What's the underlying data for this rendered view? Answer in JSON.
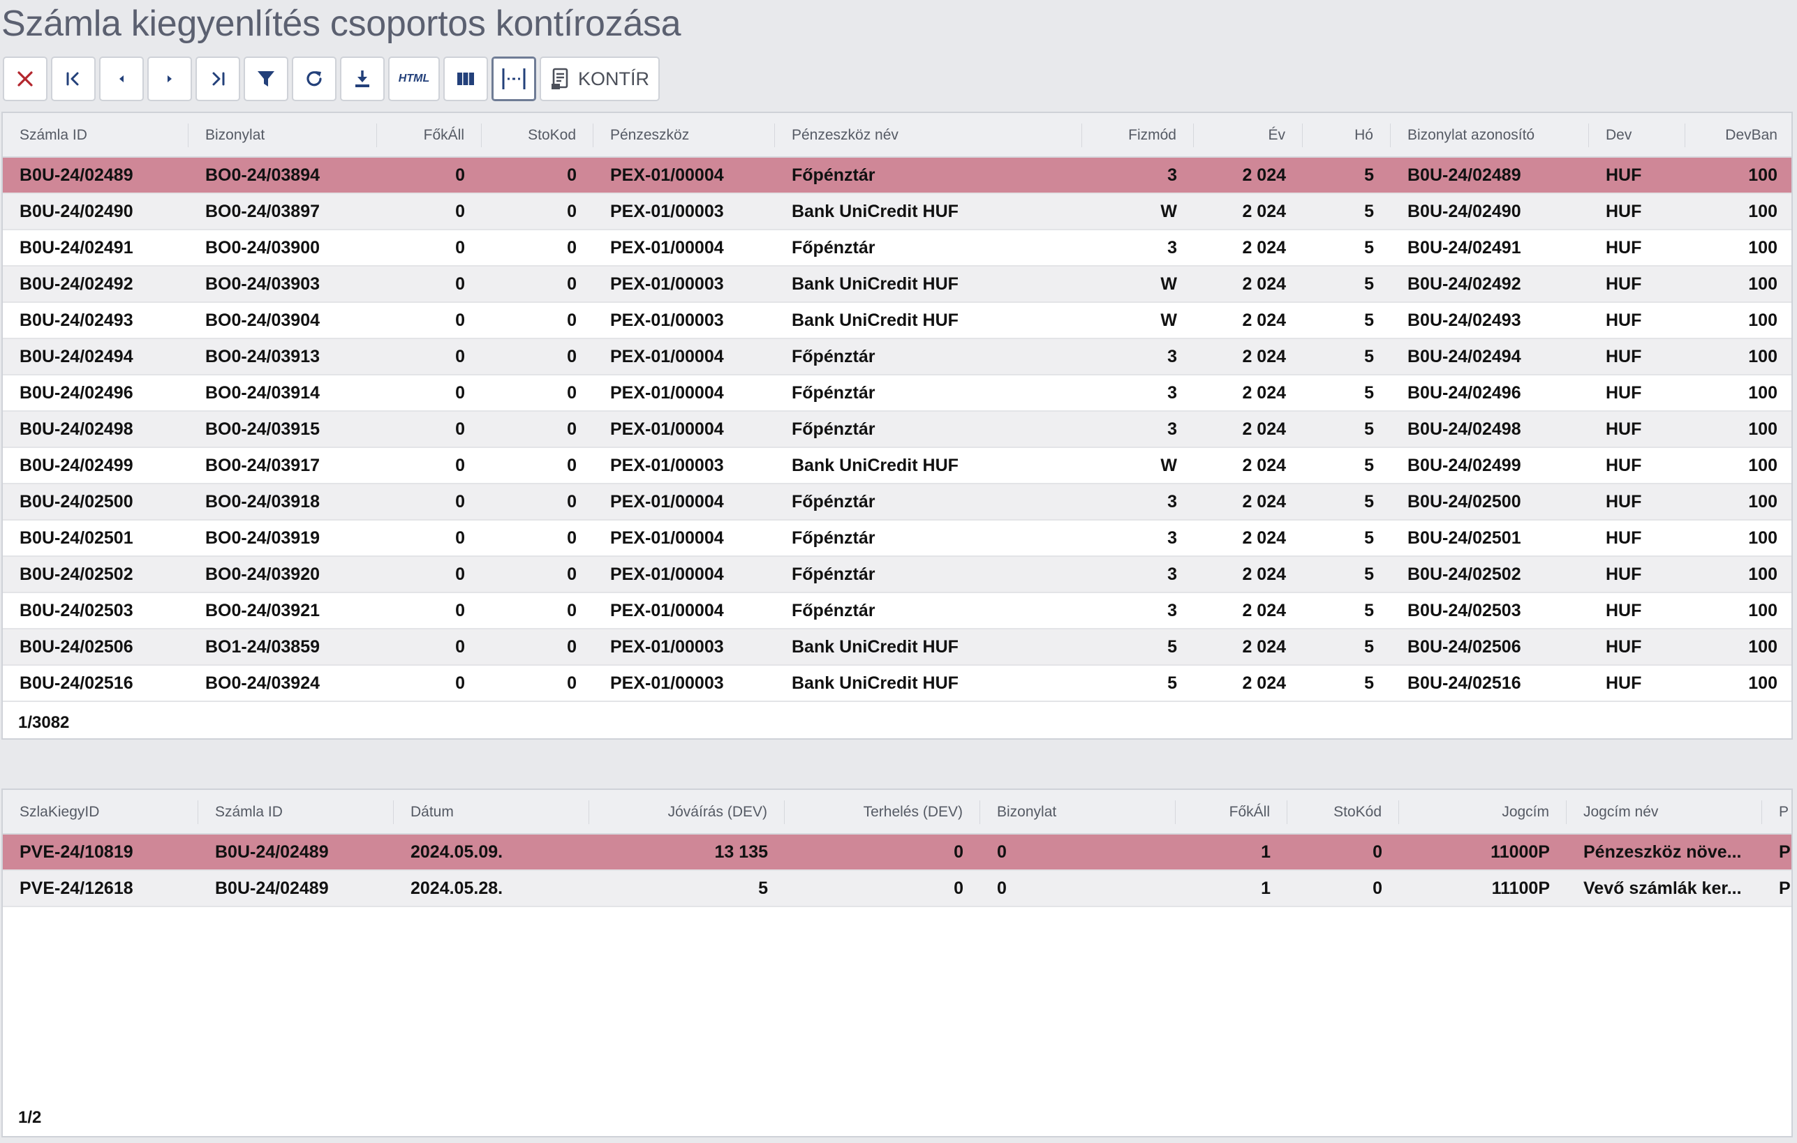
{
  "page": {
    "title": "Számla kiegyenlítés csoportos kontírozása"
  },
  "toolbar": {
    "buttons": [
      {
        "name": "close-button",
        "icon": "close-icon"
      },
      {
        "name": "first-page-button",
        "icon": "first-page-icon"
      },
      {
        "name": "prev-page-button",
        "icon": "chevron-left-icon"
      },
      {
        "name": "next-page-button",
        "icon": "chevron-right-icon"
      },
      {
        "name": "last-page-button",
        "icon": "last-page-icon"
      },
      {
        "name": "filter-button",
        "icon": "filter-icon"
      },
      {
        "name": "refresh-button",
        "icon": "refresh-icon"
      },
      {
        "name": "download-button",
        "icon": "download-icon"
      },
      {
        "name": "html-export-button",
        "label": "HTML"
      },
      {
        "name": "columns-button",
        "icon": "columns-icon"
      },
      {
        "name": "fit-columns-button",
        "icon": "fit-width-icon"
      },
      {
        "name": "kontir-button",
        "icon": "document-icon",
        "label": "KONTÍR"
      }
    ]
  },
  "main_grid": {
    "columns": [
      "Számla ID",
      "Bizonylat",
      "FőkÁll",
      "StoKod",
      "Pénzeszköz",
      "Pénzeszköz név",
      "Fizmód",
      "Év",
      "Hó",
      "Bizonylat azonosító",
      "Dev",
      "DevBan"
    ],
    "rows": [
      [
        "B0U-24/02489",
        "BO0-24/03894",
        "0",
        "0",
        "PEX-01/00004",
        "Főpénztár",
        "3",
        "2 024",
        "5",
        "B0U-24/02489",
        "HUF",
        "100"
      ],
      [
        "B0U-24/02490",
        "BO0-24/03897",
        "0",
        "0",
        "PEX-01/00003",
        "Bank UniCredit HUF",
        "W",
        "2 024",
        "5",
        "B0U-24/02490",
        "HUF",
        "100"
      ],
      [
        "B0U-24/02491",
        "BO0-24/03900",
        "0",
        "0",
        "PEX-01/00004",
        "Főpénztár",
        "3",
        "2 024",
        "5",
        "B0U-24/02491",
        "HUF",
        "100"
      ],
      [
        "B0U-24/02492",
        "BO0-24/03903",
        "0",
        "0",
        "PEX-01/00003",
        "Bank UniCredit HUF",
        "W",
        "2 024",
        "5",
        "B0U-24/02492",
        "HUF",
        "100"
      ],
      [
        "B0U-24/02493",
        "BO0-24/03904",
        "0",
        "0",
        "PEX-01/00003",
        "Bank UniCredit HUF",
        "W",
        "2 024",
        "5",
        "B0U-24/02493",
        "HUF",
        "100"
      ],
      [
        "B0U-24/02494",
        "BO0-24/03913",
        "0",
        "0",
        "PEX-01/00004",
        "Főpénztár",
        "3",
        "2 024",
        "5",
        "B0U-24/02494",
        "HUF",
        "100"
      ],
      [
        "B0U-24/02496",
        "BO0-24/03914",
        "0",
        "0",
        "PEX-01/00004",
        "Főpénztár",
        "3",
        "2 024",
        "5",
        "B0U-24/02496",
        "HUF",
        "100"
      ],
      [
        "B0U-24/02498",
        "BO0-24/03915",
        "0",
        "0",
        "PEX-01/00004",
        "Főpénztár",
        "3",
        "2 024",
        "5",
        "B0U-24/02498",
        "HUF",
        "100"
      ],
      [
        "B0U-24/02499",
        "BO0-24/03917",
        "0",
        "0",
        "PEX-01/00003",
        "Bank UniCredit HUF",
        "W",
        "2 024",
        "5",
        "B0U-24/02499",
        "HUF",
        "100"
      ],
      [
        "B0U-24/02500",
        "BO0-24/03918",
        "0",
        "0",
        "PEX-01/00004",
        "Főpénztár",
        "3",
        "2 024",
        "5",
        "B0U-24/02500",
        "HUF",
        "100"
      ],
      [
        "B0U-24/02501",
        "BO0-24/03919",
        "0",
        "0",
        "PEX-01/00004",
        "Főpénztár",
        "3",
        "2 024",
        "5",
        "B0U-24/02501",
        "HUF",
        "100"
      ],
      [
        "B0U-24/02502",
        "BO0-24/03920",
        "0",
        "0",
        "PEX-01/00004",
        "Főpénztár",
        "3",
        "2 024",
        "5",
        "B0U-24/02502",
        "HUF",
        "100"
      ],
      [
        "B0U-24/02503",
        "BO0-24/03921",
        "0",
        "0",
        "PEX-01/00004",
        "Főpénztár",
        "3",
        "2 024",
        "5",
        "B0U-24/02503",
        "HUF",
        "100"
      ],
      [
        "B0U-24/02506",
        "BO1-24/03859",
        "0",
        "0",
        "PEX-01/00003",
        "Bank UniCredit HUF",
        "5",
        "2 024",
        "5",
        "B0U-24/02506",
        "HUF",
        "100"
      ],
      [
        "B0U-24/02516",
        "BO0-24/03924",
        "0",
        "0",
        "PEX-01/00003",
        "Bank UniCredit HUF",
        "5",
        "2 024",
        "5",
        "B0U-24/02516",
        "HUF",
        "100"
      ]
    ],
    "footer": "1/3082"
  },
  "detail_grid": {
    "columns": [
      "SzlaKiegyID",
      "Számla ID",
      "Dátum",
      "Jóváírás (DEV)",
      "Terhelés (DEV)",
      "Bizonylat",
      "FőkÁll",
      "StoKód",
      "Jogcím",
      "Jogcím név",
      "P"
    ],
    "rows": [
      [
        "PVE-24/10819",
        "B0U-24/02489",
        "2024.05.09.",
        "13 135",
        "0",
        "0",
        "1",
        "0",
        "11000P",
        "Pénzeszköz növe...",
        "P"
      ],
      [
        "PVE-24/12618",
        "B0U-24/02489",
        "2024.05.28.",
        "5",
        "0",
        "0",
        "1",
        "0",
        "11100P",
        "Vevő számlák ker...",
        "P"
      ]
    ],
    "footer": "1/2"
  },
  "colors": {
    "selected_row": "#cf8797",
    "accent": "#23407a",
    "close": "#b3262d"
  }
}
